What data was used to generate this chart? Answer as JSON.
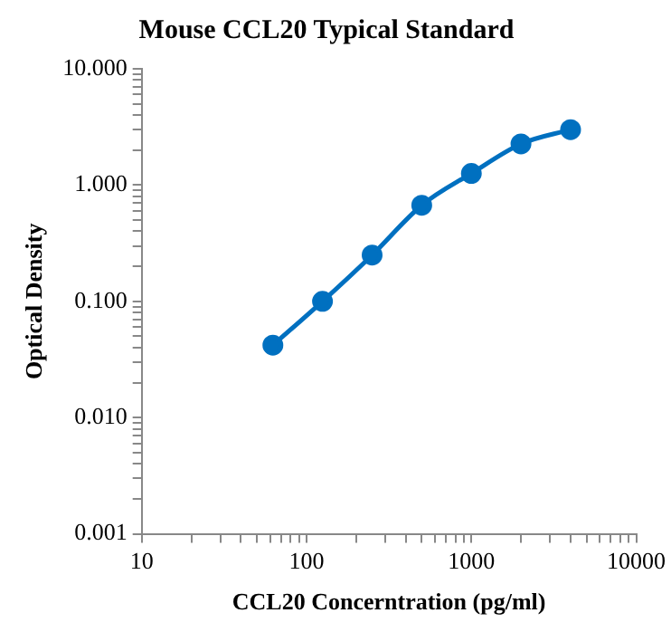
{
  "chart_data": {
    "type": "line",
    "title": "Mouse CCL20 Typical Standard",
    "xlabel": "CCL20 Concerntration (pg/ml)",
    "ylabel": "Optical Density",
    "log": "xy",
    "grid": false,
    "legend": false,
    "marker": "circle",
    "line_style": "solid",
    "x": [
      62.5,
      125,
      250,
      500,
      1000,
      2000,
      4000
    ],
    "series": [
      {
        "color": "#0070c0",
        "values": [
          0.042,
          0.1,
          0.25,
          0.67,
          1.26,
          2.26,
          3.0
        ]
      }
    ],
    "xlim": [
      10,
      10000
    ],
    "ylim": [
      0.001,
      10
    ],
    "xticks": [
      10,
      {
        "value": 20,
        "label": null
      },
      {
        "value": 30,
        "label": null
      },
      {
        "value": 40,
        "label": null
      },
      {
        "value": 50,
        "label": null
      },
      {
        "value": 60,
        "label": null
      },
      {
        "value": 70,
        "label": null
      },
      {
        "value": 80,
        "label": null
      },
      {
        "value": 90,
        "label": null
      },
      100,
      {
        "value": 200,
        "label": null
      },
      {
        "value": 300,
        "label": null
      },
      {
        "value": 400,
        "label": null
      },
      {
        "value": 500,
        "label": null
      },
      {
        "value": 600,
        "label": null
      },
      {
        "value": 700,
        "label": null
      },
      {
        "value": 800,
        "label": null
      },
      {
        "value": 900,
        "label": null
      },
      1000,
      {
        "value": 2000,
        "label": null
      },
      {
        "value": 3000,
        "label": null
      },
      {
        "value": 4000,
        "label": null
      },
      {
        "value": 5000,
        "label": null
      },
      {
        "value": 6000,
        "label": null
      },
      {
        "value": 7000,
        "label": null
      },
      {
        "value": 8000,
        "label": null
      },
      {
        "value": 9000,
        "label": null
      },
      10000
    ],
    "yticks": [
      {
        "value": 0.001,
        "label": "0.001"
      },
      {
        "value": 0.002,
        "label": null
      },
      {
        "value": 0.003,
        "label": null
      },
      {
        "value": 0.004,
        "label": null
      },
      {
        "value": 0.005,
        "label": null
      },
      {
        "value": 0.006,
        "label": null
      },
      {
        "value": 0.007,
        "label": null
      },
      {
        "value": 0.008,
        "label": null
      },
      {
        "value": 0.009,
        "label": null
      },
      {
        "value": 0.01,
        "label": "0.010"
      },
      {
        "value": 0.02,
        "label": null
      },
      {
        "value": 0.03,
        "label": null
      },
      {
        "value": 0.04,
        "label": null
      },
      {
        "value": 0.05,
        "label": null
      },
      {
        "value": 0.06,
        "label": null
      },
      {
        "value": 0.07,
        "label": null
      },
      {
        "value": 0.08,
        "label": null
      },
      {
        "value": 0.09,
        "label": null
      },
      {
        "value": 0.1,
        "label": "0.100"
      },
      {
        "value": 0.2,
        "label": null
      },
      {
        "value": 0.3,
        "label": null
      },
      {
        "value": 0.4,
        "label": null
      },
      {
        "value": 0.5,
        "label": null
      },
      {
        "value": 0.6,
        "label": null
      },
      {
        "value": 0.7,
        "label": null
      },
      {
        "value": 0.8,
        "label": null
      },
      {
        "value": 0.9,
        "label": null
      },
      {
        "value": 1,
        "label": "1.000"
      },
      {
        "value": 2,
        "label": null
      },
      {
        "value": 3,
        "label": null
      },
      {
        "value": 4,
        "label": null
      },
      {
        "value": 5,
        "label": null
      },
      {
        "value": 6,
        "label": null
      },
      {
        "value": 7,
        "label": null
      },
      {
        "value": 8,
        "label": null
      },
      {
        "value": 9,
        "label": null
      },
      {
        "value": 10,
        "label": "10.000"
      }
    ]
  }
}
